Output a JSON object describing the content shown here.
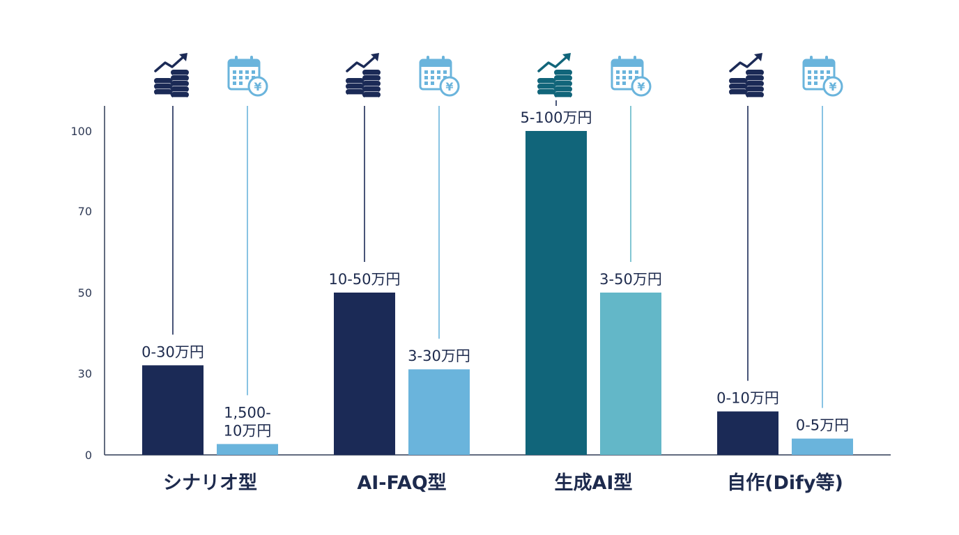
{
  "chart_data": {
    "type": "bar",
    "categories": [
      "シナリオ型",
      "AI-FAQ型",
      "生成AI型",
      "自作(Dify等)"
    ],
    "series": [
      {
        "values": [
          32,
          50,
          100,
          16
        ]
      },
      {
        "values": [
          4,
          31,
          50,
          6
        ]
      }
    ],
    "data_labels": [
      [
        "0-30万円",
        "10-50万円",
        "5-100万円",
        "0-10万円"
      ],
      [
        "1,500-\n10万円",
        "3-30万円",
        "3-50万円",
        "0-5万円"
      ]
    ],
    "y_ticks": [
      0,
      30,
      50,
      70,
      100
    ],
    "ylim": [
      0,
      100
    ],
    "title": "",
    "xlabel": "",
    "ylabel": "",
    "grid": false,
    "legend": "none",
    "icons": [
      "coins-growth-icon",
      "calendar-yen-icon"
    ]
  },
  "colors": {
    "series1": "#1b2a56",
    "series1_highlight": "#11657a",
    "series2": "#6ab4dc",
    "series2_highlight": "#63b7c8",
    "axis": "#2f3a55",
    "leader1": "#1b2a56",
    "leader2": "#6ab4dc"
  }
}
